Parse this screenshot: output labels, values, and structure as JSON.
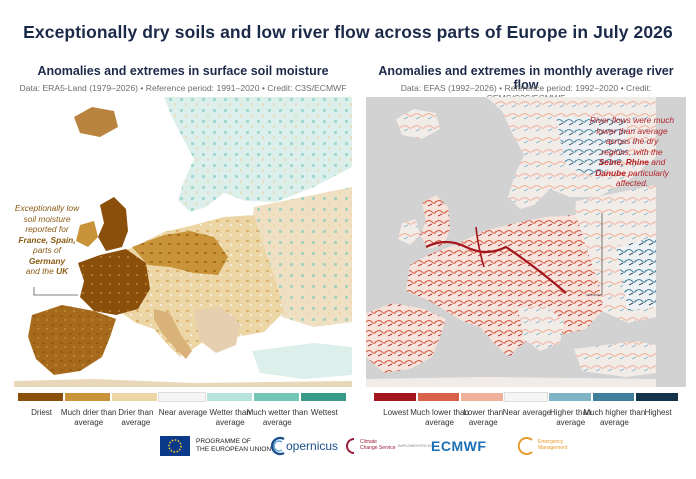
{
  "title": "Exceptionally dry soils and low river flow across parts of Europe in July 2026",
  "left": {
    "heading": "Anomalies and extremes in surface soil moisture",
    "meta": "Data: ERA5-Land (1979–2026) • Reference period: 1991–2020 • Credit: C3S/ECMWF",
    "callout": {
      "line1": "Exceptionally low",
      "line2": "soil moisture",
      "line3": "reported for",
      "line4a": "France, Spain,",
      "line5a": "parts of",
      "line5b": "Germany",
      "line6a": "and the",
      "line6b": "UK"
    },
    "legend": [
      {
        "label": "Driest",
        "color": "#8a4f0a"
      },
      {
        "label": "Much drier than average",
        "color": "#c9933a"
      },
      {
        "label": "Drier than average",
        "color": "#ecd6a6"
      },
      {
        "label": "Near average",
        "color": "#f5f5f5"
      },
      {
        "label": "Wetter than average",
        "color": "#b8e3dc"
      },
      {
        "label": "Much wetter than average",
        "color": "#74c7b7"
      },
      {
        "label": "Wettest",
        "color": "#3a9a88"
      }
    ]
  },
  "right": {
    "heading": "Anomalies and extremes in monthly average river flow",
    "meta": "Data: EFAS (1992–2026) • Reference period: 1992–2020 • Credit: CEMS/C3S/ECMWF",
    "callout": {
      "line1": "River flows were much",
      "line2": "lower than average",
      "line3": "across the dry",
      "line4": "regions, with the",
      "line5a": "Seine, Rhine",
      "line5b": "and",
      "line6a": "Danube",
      "line6b": "particularly",
      "line7": "affected."
    },
    "legend": [
      {
        "label": "Lowest",
        "color": "#a3161d"
      },
      {
        "label": "Much lower than average",
        "color": "#d9604a"
      },
      {
        "label": "Lower than average",
        "color": "#f0b19c"
      },
      {
        "label": "Near average",
        "color": "#f5f5f5"
      },
      {
        "label": "Higher than average",
        "color": "#7fb3c6"
      },
      {
        "label": "Much higher than average",
        "color": "#3f7f9b"
      },
      {
        "label": "Highest",
        "color": "#143249"
      }
    ]
  },
  "logos": {
    "programme_line1": "PROGRAMME OF",
    "programme_line2": "THE EUROPEAN UNION",
    "copernicus": "opernicus",
    "climate_line1": "Climate",
    "climate_line2": "Change Service",
    "implemented": "IMPLEMENTED BY",
    "ecmwf": "ECMWF",
    "emergency_line1": "Emergency",
    "emergency_line2": "Management"
  },
  "colors": {
    "title": "#1c2a4a",
    "callout_left": "#8a5a14",
    "callout_right": "#b0232a",
    "sea_right": "#d2d2d2",
    "ecmwf_blue": "#1b6fb5"
  }
}
